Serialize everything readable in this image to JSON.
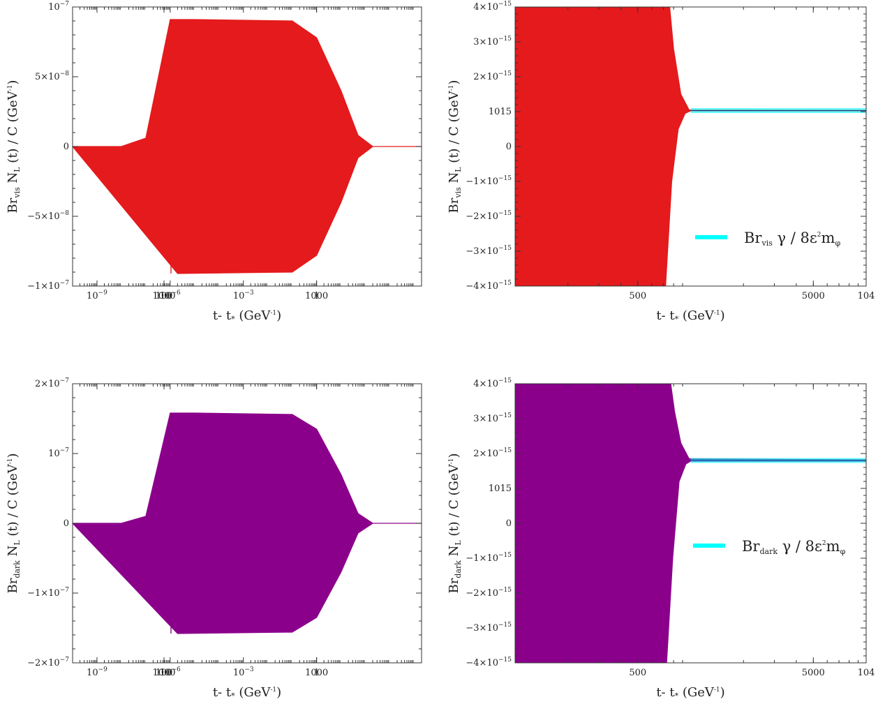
{
  "chart_data": [
    {
      "id": "top-left",
      "type": "line",
      "xscale": "log",
      "xlim": [
        1e-10,
        20000
      ],
      "ylim": [
        -1e-07,
        1e-07
      ],
      "xlabel": "t- t* (GeV-1)",
      "ylabel": "Brvis NL (t) / C (GeV-1)",
      "x_ticks": [
        "10-9",
        "10-6",
        "10-3",
        "1",
        "1000"
      ],
      "y_ticks": [
        "-1×10-7",
        "-5×10-8",
        "0",
        "5×10-8",
        "10-7"
      ],
      "color": "#e41a1c",
      "series": [
        {
          "envelope_upper": [
            [
              1e-10,
              0
            ],
            [
              1e-08,
              2e-11
            ],
            [
              1e-07,
              6e-09
            ],
            [
              1e-06,
              9.1e-08
            ],
            [
              1e-05,
              9.1e-08
            ],
            [
              0.1,
              9e-08
            ],
            [
              1,
              7.8e-08
            ],
            [
              10,
              4e-08
            ],
            [
              50,
              8e-09
            ],
            [
              200,
              0
            ],
            [
              20000,
              0
            ]
          ],
          "envelope_lower": [
            [
              1e-10,
              0
            ],
            [
              2e-06,
              -9.1e-08
            ],
            [
              0.1,
              -9e-08
            ],
            [
              1,
              -7.8e-08
            ],
            [
              10,
              -4e-08
            ],
            [
              50,
              -8e-09
            ],
            [
              200,
              0
            ],
            [
              20000,
              0
            ]
          ]
        }
      ]
    },
    {
      "id": "top-right",
      "type": "line",
      "xscale": "log",
      "xlim": [
        100,
        10000
      ],
      "ylim": [
        -4e-15,
        4e-15
      ],
      "xlabel": "t- t* (GeV-1)",
      "ylabel": "Brvis NL (t) / C (GeV-1)",
      "x_ticks": [
        "100",
        "500",
        "1000",
        "5000",
        "104"
      ],
      "y_ticks": [
        "-4×10-15",
        "-3×10-15",
        "-2×10-15",
        "-1×10-15",
        "0",
        "1015",
        "2×10-15",
        "3×10-15",
        "4×10-15"
      ],
      "color": "#e41a1c",
      "series": [
        {
          "envelope_upper": [
            [
              100,
              4e-15
            ],
            [
              760,
              4e-15
            ],
            [
              800,
              2.8e-15
            ],
            [
              880,
              1.5e-15
            ],
            [
              980,
              1.05e-15
            ],
            [
              10000,
              1.04e-15
            ]
          ],
          "envelope_lower": [
            [
              100,
              -4e-15
            ],
            [
              720,
              -4e-15
            ],
            [
              780,
              -1e-15
            ],
            [
              850,
              5e-16
            ],
            [
              930,
              9.5e-16
            ],
            [
              1000,
              1.02e-15
            ],
            [
              10000,
              1.02e-15
            ]
          ]
        }
      ],
      "reference_line": {
        "y": 1.03e-15,
        "x_from": 1000,
        "x_to": 10000,
        "color": "#00ffff"
      },
      "legend": {
        "label": "Brvis γ / 8ε2mφ",
        "position": "right",
        "color": "#00ffff"
      }
    },
    {
      "id": "bottom-left",
      "type": "line",
      "xscale": "log",
      "xlim": [
        1e-10,
        20000
      ],
      "ylim": [
        -2e-07,
        2e-07
      ],
      "xlabel": "t- t* (GeV-1)",
      "ylabel": "Brdark NL (t) / C (GeV-1)",
      "x_ticks": [
        "10-9",
        "10-6",
        "10-3",
        "1",
        "1000"
      ],
      "y_ticks": [
        "-2×10-7",
        "-1×10-7",
        "0",
        "10-7",
        "2×10-7"
      ],
      "color": "#8b008b",
      "series": [
        {
          "envelope_upper": [
            [
              1e-10,
              0
            ],
            [
              1e-08,
              3e-11
            ],
            [
              1e-07,
              1e-08
            ],
            [
              1e-06,
              1.58e-07
            ],
            [
              1e-05,
              1.58e-07
            ],
            [
              0.1,
              1.56e-07
            ],
            [
              1,
              1.35e-07
            ],
            [
              10,
              7e-08
            ],
            [
              50,
              1.4e-08
            ],
            [
              200,
              0
            ],
            [
              20000,
              0
            ]
          ],
          "envelope_lower": [
            [
              1e-10,
              0
            ],
            [
              2e-06,
              -1.58e-07
            ],
            [
              0.1,
              -1.56e-07
            ],
            [
              1,
              -1.35e-07
            ],
            [
              10,
              -7e-08
            ],
            [
              50,
              -1.4e-08
            ],
            [
              200,
              0
            ],
            [
              20000,
              0
            ]
          ]
        }
      ]
    },
    {
      "id": "bottom-right",
      "type": "line",
      "xscale": "log",
      "xlim": [
        100,
        10000
      ],
      "ylim": [
        -4e-15,
        4e-15
      ],
      "xlabel": "t- t* (GeV-1)",
      "ylabel": "Brdark NL (t) / C (GeV-1)",
      "x_ticks": [
        "100",
        "500",
        "1000",
        "5000",
        "104"
      ],
      "y_ticks": [
        "-4×10-15",
        "-3×10-15",
        "-2×10-15",
        "-1×10-15",
        "0",
        "1015",
        "2×10-15",
        "3×10-15",
        "4×10-15"
      ],
      "color": "#8b008b",
      "series": [
        {
          "envelope_upper": [
            [
              100,
              4e-15
            ],
            [
              770,
              4e-15
            ],
            [
              810,
              3.2e-15
            ],
            [
              880,
              2.3e-15
            ],
            [
              980,
              1.85e-15
            ],
            [
              10000,
              1.82e-15
            ]
          ],
          "envelope_lower": [
            [
              100,
              -4e-15
            ],
            [
              730,
              -4e-15
            ],
            [
              790,
              -1e-15
            ],
            [
              860,
              1.2e-15
            ],
            [
              940,
              1.7e-15
            ],
            [
              1000,
              1.78e-15
            ],
            [
              10000,
              1.78e-15
            ]
          ]
        }
      ],
      "reference_line": {
        "y": 1.8e-15,
        "x_from": 1000,
        "x_to": 10000,
        "color": "#00ffff"
      },
      "legend": {
        "label": "Brdark γ / 8ε2mφ",
        "position": "right",
        "color": "#00ffff"
      }
    }
  ]
}
